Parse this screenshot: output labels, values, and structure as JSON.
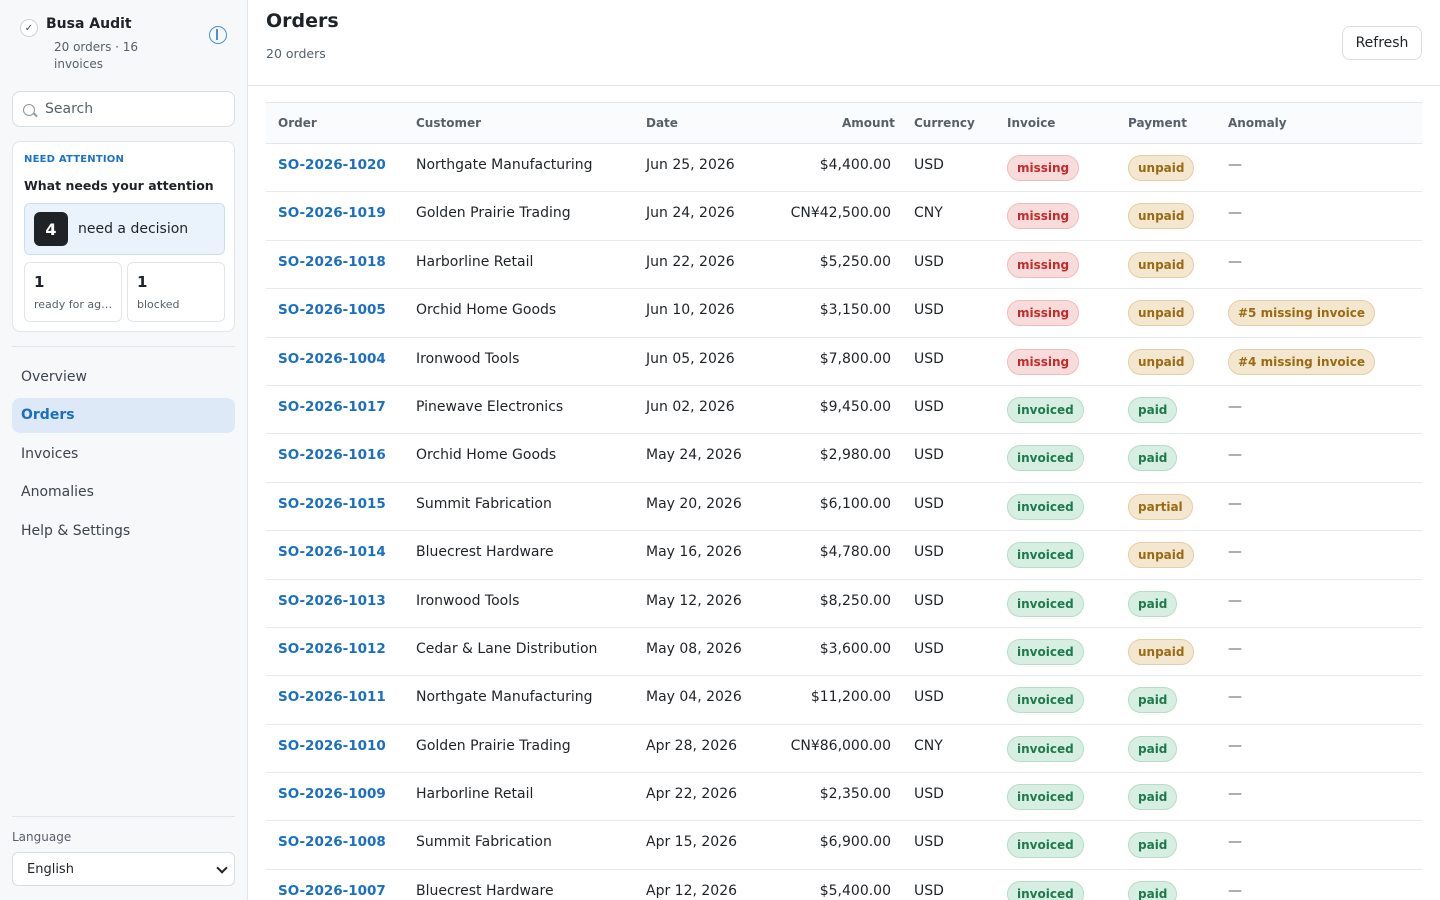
{
  "app": {
    "title": "Busa Audit",
    "subtitle": "20 orders · 16 invoices"
  },
  "search": {
    "placeholder": "Search"
  },
  "attention": {
    "kicker": "NEED ATTENTION",
    "title": "What needs your attention",
    "decision": {
      "count": "4",
      "label": "need a decision"
    },
    "ready": {
      "count": "1",
      "label": "ready for agent"
    },
    "blocked": {
      "count": "1",
      "label": "blocked"
    }
  },
  "nav": {
    "items": [
      {
        "label": "Overview",
        "active": false
      },
      {
        "label": "Orders",
        "active": true
      },
      {
        "label": "Invoices",
        "active": false
      },
      {
        "label": "Anomalies",
        "active": false
      },
      {
        "label": "Help & Settings",
        "active": false
      }
    ]
  },
  "language": {
    "label": "Language",
    "value": "English"
  },
  "page": {
    "title": "Orders",
    "subtitle": "20 orders",
    "refresh_label": "Refresh"
  },
  "table": {
    "columns": [
      "Order",
      "Customer",
      "Date",
      "Amount",
      "Currency",
      "Invoice",
      "Payment",
      "Anomaly"
    ],
    "rows": [
      {
        "order": "SO-2026-1020",
        "customer": "Northgate Manufacturing",
        "date": "Jun 25, 2026",
        "amount": "$4,400.00",
        "currency": "USD",
        "invoice": "missing",
        "payment": "unpaid",
        "anomaly": ""
      },
      {
        "order": "SO-2026-1019",
        "customer": "Golden Prairie Trading",
        "date": "Jun 24, 2026",
        "amount": "CN¥42,500.00",
        "currency": "CNY",
        "invoice": "missing",
        "payment": "unpaid",
        "anomaly": ""
      },
      {
        "order": "SO-2026-1018",
        "customer": "Harborline Retail",
        "date": "Jun 22, 2026",
        "amount": "$5,250.00",
        "currency": "USD",
        "invoice": "missing",
        "payment": "unpaid",
        "anomaly": ""
      },
      {
        "order": "SO-2026-1005",
        "customer": "Orchid Home Goods",
        "date": "Jun 10, 2026",
        "amount": "$3,150.00",
        "currency": "USD",
        "invoice": "missing",
        "payment": "unpaid",
        "anomaly": "#5 missing invoice"
      },
      {
        "order": "SO-2026-1004",
        "customer": "Ironwood Tools",
        "date": "Jun 05, 2026",
        "amount": "$7,800.00",
        "currency": "USD",
        "invoice": "missing",
        "payment": "unpaid",
        "anomaly": "#4 missing invoice"
      },
      {
        "order": "SO-2026-1017",
        "customer": "Pinewave Electronics",
        "date": "Jun 02, 2026",
        "amount": "$9,450.00",
        "currency": "USD",
        "invoice": "invoiced",
        "payment": "paid",
        "anomaly": ""
      },
      {
        "order": "SO-2026-1016",
        "customer": "Orchid Home Goods",
        "date": "May 24, 2026",
        "amount": "$2,980.00",
        "currency": "USD",
        "invoice": "invoiced",
        "payment": "paid",
        "anomaly": ""
      },
      {
        "order": "SO-2026-1015",
        "customer": "Summit Fabrication",
        "date": "May 20, 2026",
        "amount": "$6,100.00",
        "currency": "USD",
        "invoice": "invoiced",
        "payment": "partial",
        "anomaly": ""
      },
      {
        "order": "SO-2026-1014",
        "customer": "Bluecrest Hardware",
        "date": "May 16, 2026",
        "amount": "$4,780.00",
        "currency": "USD",
        "invoice": "invoiced",
        "payment": "unpaid",
        "anomaly": ""
      },
      {
        "order": "SO-2026-1013",
        "customer": "Ironwood Tools",
        "date": "May 12, 2026",
        "amount": "$8,250.00",
        "currency": "USD",
        "invoice": "invoiced",
        "payment": "paid",
        "anomaly": ""
      },
      {
        "order": "SO-2026-1012",
        "customer": "Cedar & Lane Distribution",
        "date": "May 08, 2026",
        "amount": "$3,600.00",
        "currency": "USD",
        "invoice": "invoiced",
        "payment": "unpaid",
        "anomaly": ""
      },
      {
        "order": "SO-2026-1011",
        "customer": "Northgate Manufacturing",
        "date": "May 04, 2026",
        "amount": "$11,200.00",
        "currency": "USD",
        "invoice": "invoiced",
        "payment": "paid",
        "anomaly": ""
      },
      {
        "order": "SO-2026-1010",
        "customer": "Golden Prairie Trading",
        "date": "Apr 28, 2026",
        "amount": "CN¥86,000.00",
        "currency": "CNY",
        "invoice": "invoiced",
        "payment": "paid",
        "anomaly": ""
      },
      {
        "order": "SO-2026-1009",
        "customer": "Harborline Retail",
        "date": "Apr 22, 2026",
        "amount": "$2,350.00",
        "currency": "USD",
        "invoice": "invoiced",
        "payment": "paid",
        "anomaly": ""
      },
      {
        "order": "SO-2026-1008",
        "customer": "Summit Fabrication",
        "date": "Apr 15, 2026",
        "amount": "$6,900.00",
        "currency": "USD",
        "invoice": "invoiced",
        "payment": "paid",
        "anomaly": ""
      },
      {
        "order": "SO-2026-1007",
        "customer": "Bluecrest Hardware",
        "date": "Apr 12, 2026",
        "amount": "$5,400.00",
        "currency": "USD",
        "invoice": "invoiced",
        "payment": "paid",
        "anomaly": ""
      }
    ],
    "empty_anomaly": "—"
  },
  "colors": {
    "accent": "#1a6fc2",
    "missing": "#c42b2b",
    "unpaid": "#9a6a14",
    "paid": "#1d7a4a"
  }
}
